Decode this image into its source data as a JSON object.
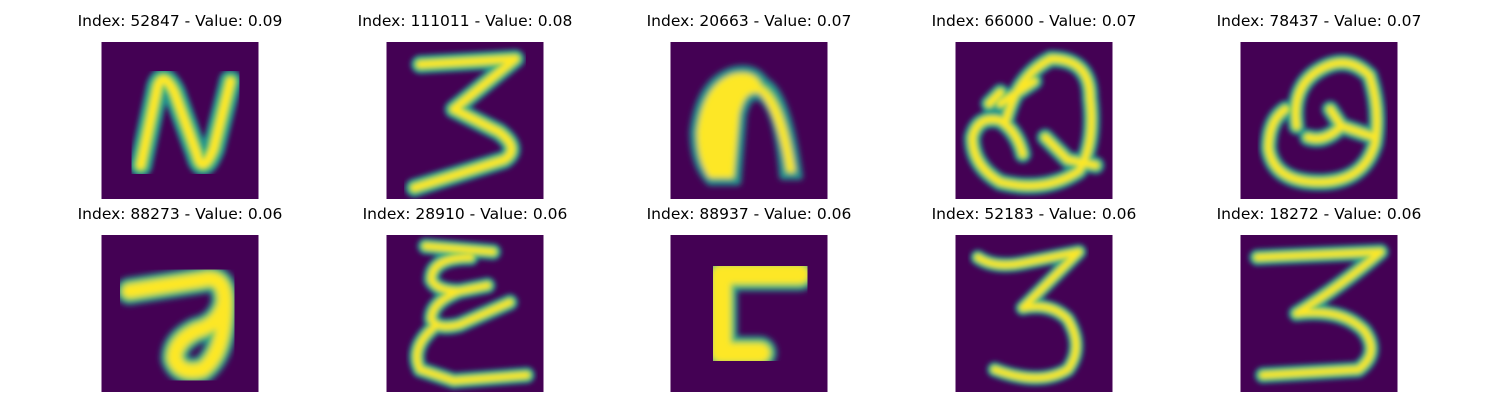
{
  "colors": {
    "background": "#440154",
    "stroke_edge": "#21918c",
    "stroke_mid": "#5ec962",
    "stroke_core": "#fde725"
  },
  "panels": [
    {
      "index": "52847",
      "value": "0.09",
      "title": "Index: 52847 - Value: 0.09",
      "glyph": "N"
    },
    {
      "index": "111011",
      "value": "0.08",
      "title": "Index: 111011 - Value: 0.08",
      "glyph": "3"
    },
    {
      "index": "20663",
      "value": "0.07",
      "title": "Index: 20663 - Value: 0.07",
      "glyph": "n"
    },
    {
      "index": "66000",
      "value": "0.07",
      "title": "Index: 66000 - Value: 0.07",
      "glyph": "Q"
    },
    {
      "index": "78437",
      "value": "0.07",
      "title": "Index: 78437 - Value: 0.07",
      "glyph": "Q"
    },
    {
      "index": "88273",
      "value": "0.06",
      "title": "Index: 88273 - Value: 0.06",
      "glyph": "7"
    },
    {
      "index": "28910",
      "value": "0.06",
      "title": "Index: 28910 - Value: 0.06",
      "glyph": "E"
    },
    {
      "index": "88937",
      "value": "0.06",
      "title": "Index: 88937 - Value: 0.06",
      "glyph": "L"
    },
    {
      "index": "52183",
      "value": "0.06",
      "title": "Index: 52183 - Value: 0.06",
      "glyph": "3"
    },
    {
      "index": "18272",
      "value": "0.06",
      "title": "Index: 18272 - Value: 0.06",
      "glyph": "3"
    }
  ]
}
